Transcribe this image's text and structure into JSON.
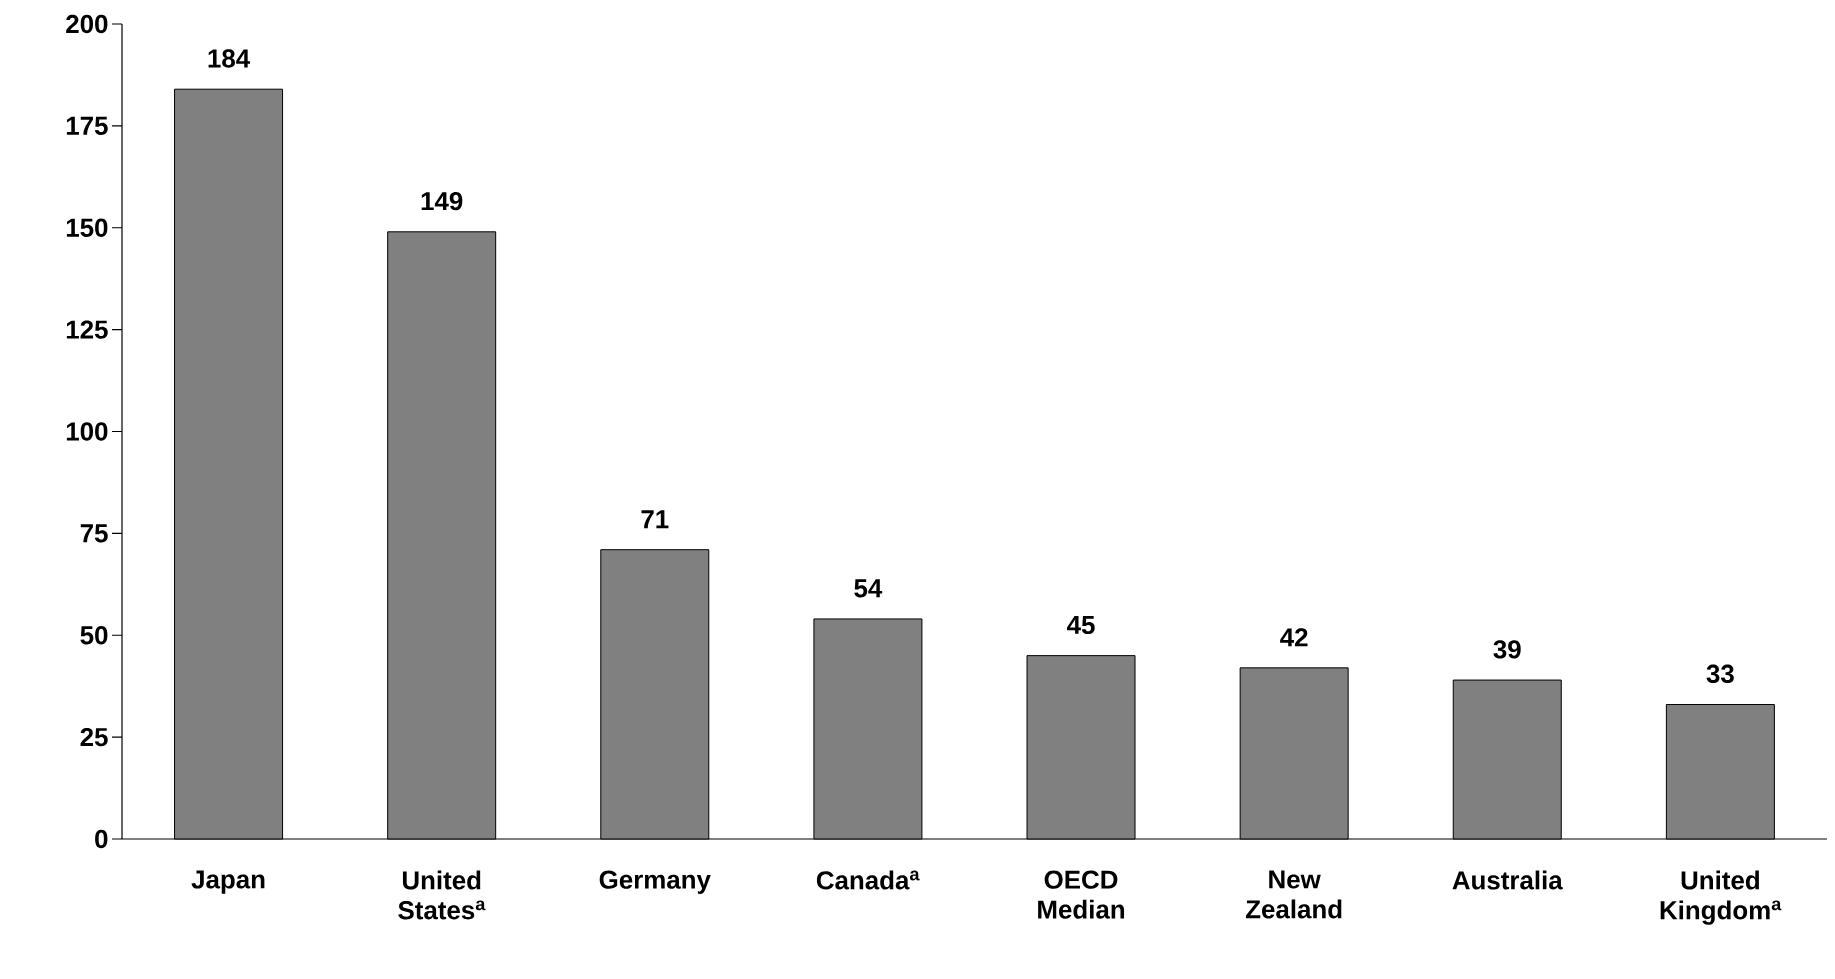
{
  "chart_data": {
    "type": "bar",
    "categories": [
      "Japan",
      "United States$^{a}$",
      "Germany",
      "Canada$^{a}$",
      "OECD Median",
      "New Zealand",
      "Australia",
      "United Kingdom$^{a}$"
    ],
    "values": [
      184,
      149,
      71,
      54,
      45,
      42,
      39,
      33
    ],
    "color": "#808080",
    "ylim": [
      0,
      200
    ],
    "yticks": [
      0,
      25,
      50,
      75,
      100,
      125,
      150,
      175,
      200
    ],
    "data_labels": true,
    "grid": false
  }
}
